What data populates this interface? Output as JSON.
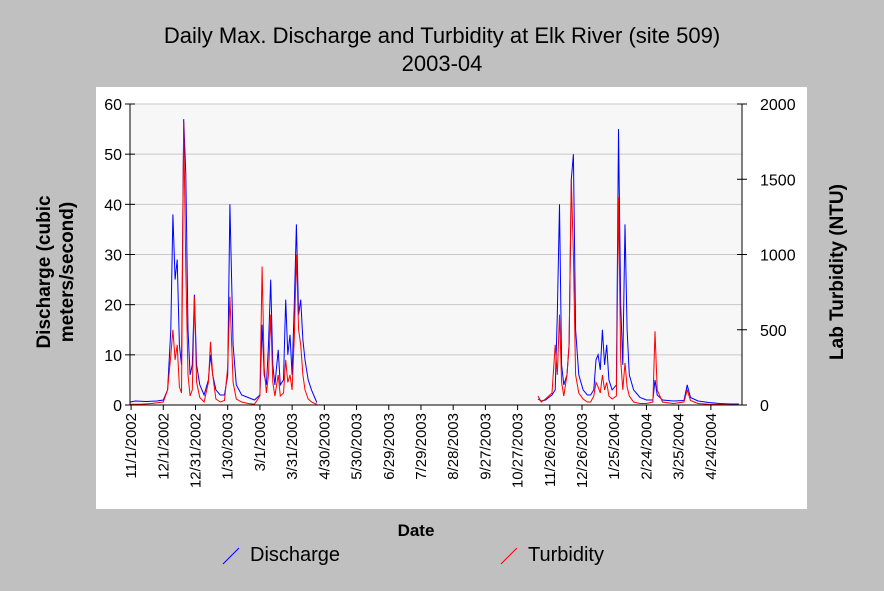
{
  "title": {
    "line1": "Daily Max. Discharge and Turbidity at Elk River (site 509)",
    "line2": "2003-04"
  },
  "chart_data": {
    "type": "line",
    "xlabel": "Date",
    "ylabel_left": "Discharge (cubic meters/second)",
    "ylabel_left_lines": [
      "Discharge (cubic",
      "meters/second)"
    ],
    "ylabel_right": "Lab Turbidity (NTU)",
    "ylim_left": [
      0,
      60
    ],
    "ylim_right": [
      0,
      2000
    ],
    "xlim": [
      "2002-10-31",
      "2004-05-23"
    ],
    "left_ticks": [
      "0",
      "10",
      "20",
      "30",
      "40",
      "50",
      "60"
    ],
    "right_ticks": [
      "0",
      "500",
      "1000",
      "1500",
      "2000"
    ],
    "x_tick_dates": [
      "2002-11-01",
      "2002-12-01",
      "2002-12-31",
      "2003-01-30",
      "2003-03-01",
      "2003-03-31",
      "2003-04-30",
      "2003-05-30",
      "2003-06-29",
      "2003-07-29",
      "2003-08-28",
      "2003-09-27",
      "2003-10-27",
      "2003-11-26",
      "2003-12-26",
      "2004-01-25",
      "2004-02-24",
      "2004-03-25",
      "2004-04-24"
    ],
    "x_tick_labels": [
      "11/1/2002",
      "12/1/2002",
      "12/31/2002",
      "1/30/2003",
      "3/1/2003",
      "3/31/2003",
      "4/30/2003",
      "5/30/2003",
      "6/29/2003",
      "7/29/2003",
      "8/28/2003",
      "9/27/2003",
      "10/27/2003",
      "11/26/2003",
      "12/26/2003",
      "1/25/2004",
      "2/24/2004",
      "3/25/2004",
      "4/24/2004"
    ],
    "grid": "horizontal",
    "legend_position": "bottom",
    "series": [
      {
        "name": "Discharge",
        "axis": "left",
        "color": "#0000ff",
        "points": [
          [
            "2002-10-31",
            0.6
          ],
          [
            "2002-11-05",
            0.8
          ],
          [
            "2002-11-15",
            0.7
          ],
          [
            "2002-11-25",
            0.8
          ],
          [
            "2002-12-01",
            1.0
          ],
          [
            "2002-12-05",
            3
          ],
          [
            "2002-12-08",
            15
          ],
          [
            "2002-12-10",
            38
          ],
          [
            "2002-12-12",
            25
          ],
          [
            "2002-12-14",
            29
          ],
          [
            "2002-12-16",
            12
          ],
          [
            "2002-12-18",
            8
          ],
          [
            "2002-12-20",
            57
          ],
          [
            "2002-12-22",
            46
          ],
          [
            "2002-12-24",
            15
          ],
          [
            "2002-12-26",
            6
          ],
          [
            "2002-12-28",
            8
          ],
          [
            "2002-12-30",
            22
          ],
          [
            "2003-01-01",
            8
          ],
          [
            "2003-01-04",
            4
          ],
          [
            "2003-01-08",
            2
          ],
          [
            "2003-01-12",
            5
          ],
          [
            "2003-01-14",
            10
          ],
          [
            "2003-01-16",
            6
          ],
          [
            "2003-01-19",
            3
          ],
          [
            "2003-01-23",
            2
          ],
          [
            "2003-01-27",
            2
          ],
          [
            "2003-01-30",
            6
          ],
          [
            "2003-02-01",
            40
          ],
          [
            "2003-02-04",
            12
          ],
          [
            "2003-02-07",
            4
          ],
          [
            "2003-02-12",
            2
          ],
          [
            "2003-02-18",
            1.5
          ],
          [
            "2003-02-24",
            1
          ],
          [
            "2003-03-01",
            2
          ],
          [
            "2003-03-03",
            16
          ],
          [
            "2003-03-05",
            6
          ],
          [
            "2003-03-07",
            4
          ],
          [
            "2003-03-09",
            12
          ],
          [
            "2003-03-11",
            25
          ],
          [
            "2003-03-13",
            8
          ],
          [
            "2003-03-15",
            4
          ],
          [
            "2003-03-18",
            11
          ],
          [
            "2003-03-20",
            4
          ],
          [
            "2003-03-23",
            5
          ],
          [
            "2003-03-25",
            21
          ],
          [
            "2003-03-27",
            10
          ],
          [
            "2003-03-29",
            14
          ],
          [
            "2003-03-31",
            6
          ],
          [
            "2003-04-02",
            20
          ],
          [
            "2003-04-04",
            36
          ],
          [
            "2003-04-06",
            18
          ],
          [
            "2003-04-08",
            21
          ],
          [
            "2003-04-10",
            13
          ],
          [
            "2003-04-12",
            9
          ],
          [
            "2003-04-15",
            5
          ],
          [
            "2003-04-18",
            3
          ],
          [
            "2003-04-21",
            1.5
          ],
          [
            "2003-04-23",
            0.5
          ],
          [
            "2003-11-15",
            1.2
          ],
          [
            "2003-11-18",
            0.8
          ],
          [
            "2003-11-22",
            1
          ],
          [
            "2003-11-25",
            1.5
          ],
          [
            "2003-11-28",
            2
          ],
          [
            "2003-12-01",
            3
          ],
          [
            "2003-12-03",
            18
          ],
          [
            "2003-12-05",
            40
          ],
          [
            "2003-12-07",
            8
          ],
          [
            "2003-12-09",
            4
          ],
          [
            "2003-12-12",
            6
          ],
          [
            "2003-12-14",
            12
          ],
          [
            "2003-12-16",
            45
          ],
          [
            "2003-12-18",
            50
          ],
          [
            "2003-12-20",
            15
          ],
          [
            "2003-12-23",
            6
          ],
          [
            "2003-12-27",
            3
          ],
          [
            "2003-12-31",
            2
          ],
          [
            "2004-01-03",
            2
          ],
          [
            "2004-01-06",
            3
          ],
          [
            "2004-01-08",
            9
          ],
          [
            "2004-01-10",
            10
          ],
          [
            "2004-01-12",
            7
          ],
          [
            "2004-01-14",
            15
          ],
          [
            "2004-01-16",
            8
          ],
          [
            "2004-01-18",
            12
          ],
          [
            "2004-01-20",
            5
          ],
          [
            "2004-01-23",
            3
          ],
          [
            "2004-01-27",
            4
          ],
          [
            "2004-01-29",
            55
          ],
          [
            "2004-01-31",
            20
          ],
          [
            "2004-02-02",
            8
          ],
          [
            "2004-02-04",
            36
          ],
          [
            "2004-02-06",
            15
          ],
          [
            "2004-02-08",
            6
          ],
          [
            "2004-02-12",
            3
          ],
          [
            "2004-02-18",
            1.5
          ],
          [
            "2004-02-24",
            1
          ],
          [
            "2004-03-01",
            1
          ],
          [
            "2004-03-03",
            5
          ],
          [
            "2004-03-05",
            2
          ],
          [
            "2004-03-10",
            1
          ],
          [
            "2004-03-20",
            0.8
          ],
          [
            "2004-03-30",
            0.9
          ],
          [
            "2004-04-02",
            4
          ],
          [
            "2004-04-05",
            1.5
          ],
          [
            "2004-04-12",
            0.8
          ],
          [
            "2004-04-22",
            0.5
          ],
          [
            "2004-05-02",
            0.3
          ],
          [
            "2004-05-12",
            0.2
          ],
          [
            "2004-05-20",
            0.2
          ]
        ]
      },
      {
        "name": "Turbidity",
        "axis": "right",
        "color": "#ff0000",
        "points": [
          [
            "2002-10-31",
            5
          ],
          [
            "2002-11-10",
            5
          ],
          [
            "2002-11-20",
            10
          ],
          [
            "2002-12-01",
            20
          ],
          [
            "2002-12-05",
            100
          ],
          [
            "2002-12-08",
            330
          ],
          [
            "2002-12-10",
            500
          ],
          [
            "2002-12-12",
            300
          ],
          [
            "2002-12-14",
            400
          ],
          [
            "2002-12-16",
            120
          ],
          [
            "2002-12-18",
            80
          ],
          [
            "2002-12-20",
            1880
          ],
          [
            "2002-12-22",
            900
          ],
          [
            "2002-12-24",
            200
          ],
          [
            "2002-12-26",
            60
          ],
          [
            "2002-12-28",
            100
          ],
          [
            "2002-12-30",
            720
          ],
          [
            "2003-01-01",
            150
          ],
          [
            "2003-01-04",
            50
          ],
          [
            "2003-01-08",
            20
          ],
          [
            "2003-01-12",
            150
          ],
          [
            "2003-01-14",
            420
          ],
          [
            "2003-01-16",
            200
          ],
          [
            "2003-01-19",
            40
          ],
          [
            "2003-01-23",
            20
          ],
          [
            "2003-01-27",
            30
          ],
          [
            "2003-01-30",
            250
          ],
          [
            "2003-02-01",
            720
          ],
          [
            "2003-02-04",
            150
          ],
          [
            "2003-02-07",
            40
          ],
          [
            "2003-02-12",
            20
          ],
          [
            "2003-02-18",
            10
          ],
          [
            "2003-02-24",
            5
          ],
          [
            "2003-03-01",
            60
          ],
          [
            "2003-03-03",
            920
          ],
          [
            "2003-03-05",
            250
          ],
          [
            "2003-03-07",
            80
          ],
          [
            "2003-03-09",
            200
          ],
          [
            "2003-03-11",
            600
          ],
          [
            "2003-03-13",
            150
          ],
          [
            "2003-03-15",
            60
          ],
          [
            "2003-03-18",
            200
          ],
          [
            "2003-03-20",
            60
          ],
          [
            "2003-03-23",
            80
          ],
          [
            "2003-03-25",
            300
          ],
          [
            "2003-03-27",
            150
          ],
          [
            "2003-03-29",
            200
          ],
          [
            "2003-03-31",
            100
          ],
          [
            "2003-04-02",
            450
          ],
          [
            "2003-04-04",
            1000
          ],
          [
            "2003-04-06",
            500
          ],
          [
            "2003-04-08",
            400
          ],
          [
            "2003-04-10",
            200
          ],
          [
            "2003-04-12",
            100
          ],
          [
            "2003-04-15",
            40
          ],
          [
            "2003-04-18",
            20
          ],
          [
            "2003-04-21",
            10
          ],
          [
            "2003-04-23",
            5
          ],
          [
            "2003-11-15",
            60
          ],
          [
            "2003-11-18",
            20
          ],
          [
            "2003-11-22",
            40
          ],
          [
            "2003-11-25",
            60
          ],
          [
            "2003-11-28",
            80
          ],
          [
            "2003-12-01",
            400
          ],
          [
            "2003-12-03",
            200
          ],
          [
            "2003-12-05",
            600
          ],
          [
            "2003-12-07",
            150
          ],
          [
            "2003-12-09",
            60
          ],
          [
            "2003-12-12",
            200
          ],
          [
            "2003-12-14",
            400
          ],
          [
            "2003-12-16",
            1500
          ],
          [
            "2003-12-18",
            1000
          ],
          [
            "2003-12-20",
            200
          ],
          [
            "2003-12-23",
            80
          ],
          [
            "2003-12-27",
            40
          ],
          [
            "2003-12-31",
            20
          ],
          [
            "2004-01-03",
            20
          ],
          [
            "2004-01-06",
            60
          ],
          [
            "2004-01-08",
            150
          ],
          [
            "2004-01-10",
            120
          ],
          [
            "2004-01-12",
            80
          ],
          [
            "2004-01-14",
            200
          ],
          [
            "2004-01-16",
            100
          ],
          [
            "2004-01-18",
            150
          ],
          [
            "2004-01-20",
            60
          ],
          [
            "2004-01-23",
            40
          ],
          [
            "2004-01-27",
            60
          ],
          [
            "2004-01-29",
            1380
          ],
          [
            "2004-01-31",
            300
          ],
          [
            "2004-02-02",
            100
          ],
          [
            "2004-02-04",
            280
          ],
          [
            "2004-02-06",
            120
          ],
          [
            "2004-02-08",
            60
          ],
          [
            "2004-02-12",
            20
          ],
          [
            "2004-02-18",
            10
          ],
          [
            "2004-02-24",
            10
          ],
          [
            "2004-03-01",
            20
          ],
          [
            "2004-03-03",
            490
          ],
          [
            "2004-03-05",
            100
          ],
          [
            "2004-03-10",
            20
          ],
          [
            "2004-03-20",
            10
          ],
          [
            "2004-03-30",
            20
          ],
          [
            "2004-04-02",
            100
          ],
          [
            "2004-04-05",
            30
          ],
          [
            "2004-04-12",
            10
          ],
          [
            "2004-04-22",
            5
          ],
          [
            "2004-05-02",
            3
          ],
          [
            "2004-05-12",
            2
          ],
          [
            "2004-05-20",
            2
          ]
        ]
      }
    ]
  }
}
